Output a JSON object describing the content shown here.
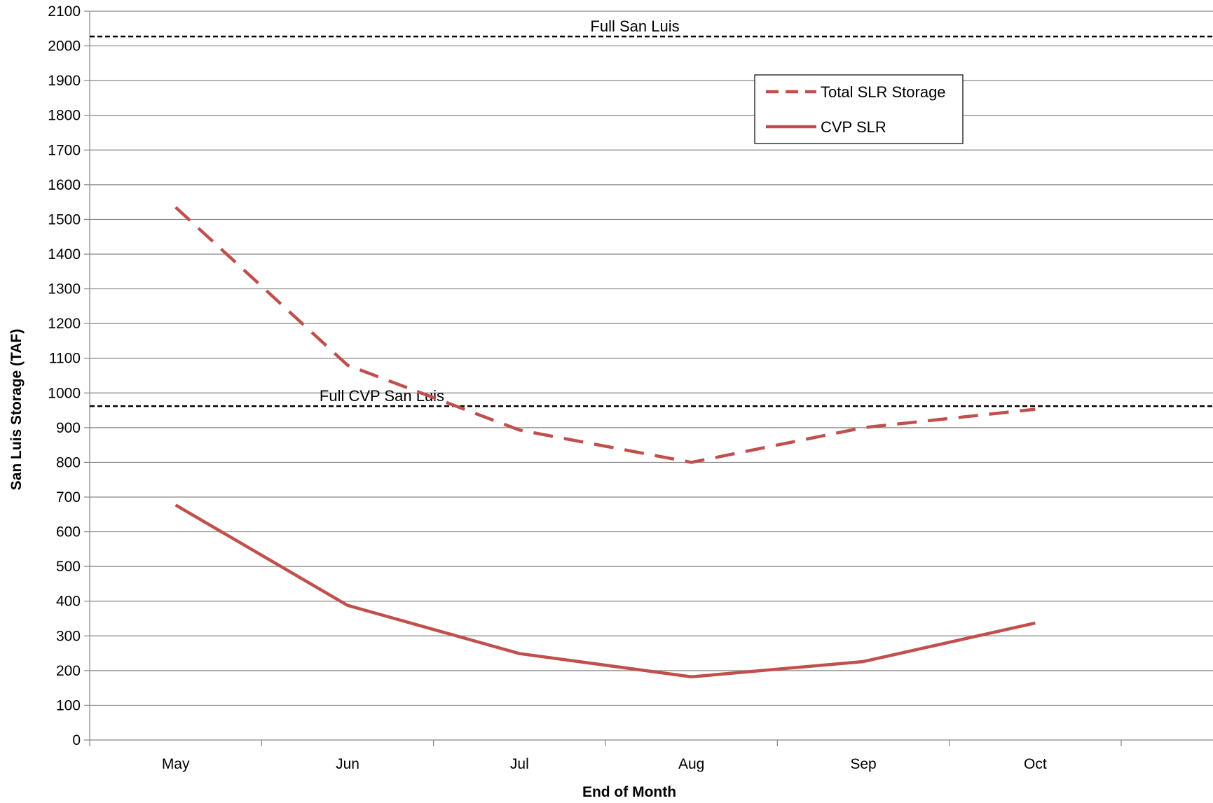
{
  "chart_data": {
    "type": "line",
    "title": "",
    "xlabel": "End of Month",
    "ylabel": "San Luis Storage (TAF)",
    "categories": [
      "May",
      "Jun",
      "Jul",
      "Aug",
      "Sep",
      "Oct"
    ],
    "ylim": [
      0,
      2100
    ],
    "yticks": [
      0,
      100,
      200,
      300,
      400,
      500,
      600,
      700,
      800,
      900,
      1000,
      1100,
      1200,
      1300,
      1400,
      1500,
      1600,
      1700,
      1800,
      1900,
      2000,
      2100
    ],
    "grid": "horizontal",
    "legend_position": "top-right",
    "series": [
      {
        "name": "Total SLR Storage",
        "style": "dashed",
        "color": "#c0504d",
        "values": [
          1535,
          1080,
          893,
          800,
          900,
          953
        ]
      },
      {
        "name": "CVP SLR",
        "style": "solid",
        "color": "#c0504d",
        "values": [
          677,
          388,
          249,
          182,
          226,
          337
        ]
      }
    ],
    "reference_lines": [
      {
        "label": "Full  San Luis",
        "value": 2027,
        "style": "dashed",
        "color": "#000000"
      },
      {
        "label": "Full CVP San Luis",
        "value": 962,
        "style": "dashed",
        "color": "#000000"
      }
    ]
  }
}
